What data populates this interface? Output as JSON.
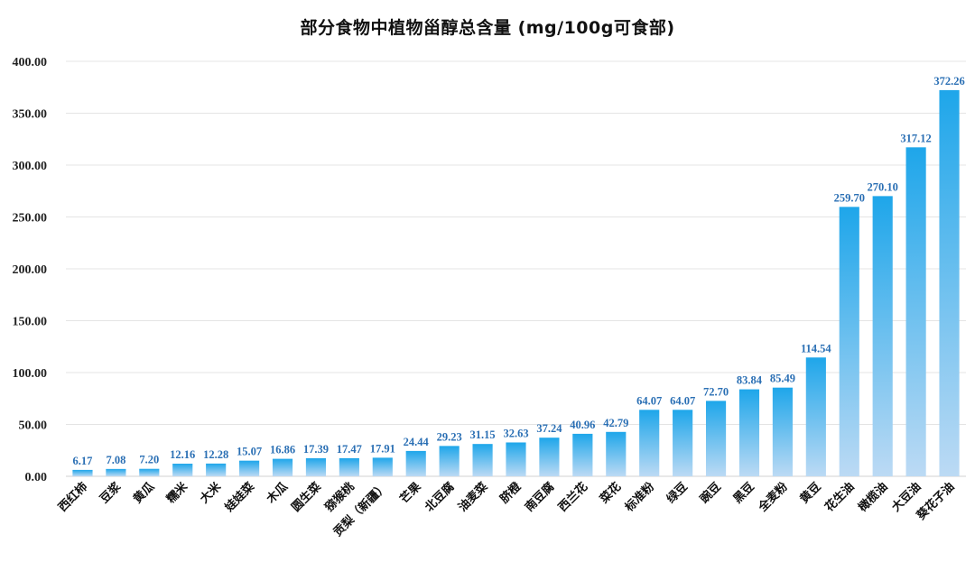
{
  "chart_data": {
    "type": "bar",
    "title": "部分食物中植物甾醇总含量 (mg/100g可食部)",
    "categories": [
      "西红柿",
      "豆浆",
      "黄瓜",
      "糯米",
      "大米",
      "娃娃菜",
      "木瓜",
      "圆生菜",
      "猕猴桃",
      "贡梨（新疆）",
      "芒果",
      "北豆腐",
      "油麦菜",
      "脐橙",
      "南豆腐",
      "西兰花",
      "菜花",
      "标准粉",
      "绿豆",
      "豌豆",
      "黑豆",
      "全麦粉",
      "黄豆",
      "花生油",
      "橄榄油",
      "大豆油",
      "葵花子油"
    ],
    "values": [
      6.17,
      7.08,
      7.2,
      12.16,
      12.28,
      15.07,
      16.86,
      17.39,
      17.47,
      17.91,
      24.44,
      29.23,
      31.15,
      32.63,
      37.24,
      40.96,
      42.79,
      64.07,
      64.07,
      72.7,
      83.84,
      85.49,
      114.54,
      259.7,
      270.1,
      317.12,
      372.26
    ],
    "value_labels": [
      "6.17",
      "7.08",
      "7.20",
      "12.16",
      "12.28",
      "15.07",
      "16.86",
      "17.39",
      "17.47",
      "17.91",
      "24.44",
      "29.23",
      "31.15",
      "32.63",
      "37.24",
      "40.96",
      "42.79",
      "64.07",
      "64.07",
      "72.70",
      "83.84",
      "85.49",
      "114.54",
      "259.70",
      "270.10",
      "317.12",
      "372.26"
    ],
    "yticks": [
      "0.00",
      "50.00",
      "100.00",
      "150.00",
      "200.00",
      "250.00",
      "300.00",
      "350.00",
      "400.00"
    ],
    "ylim": [
      0,
      400
    ],
    "grid": true,
    "colors": {
      "bar_top": "#1ea6ea",
      "bar_bottom": "#bcdaf4",
      "label": "#2a6fb4"
    }
  }
}
